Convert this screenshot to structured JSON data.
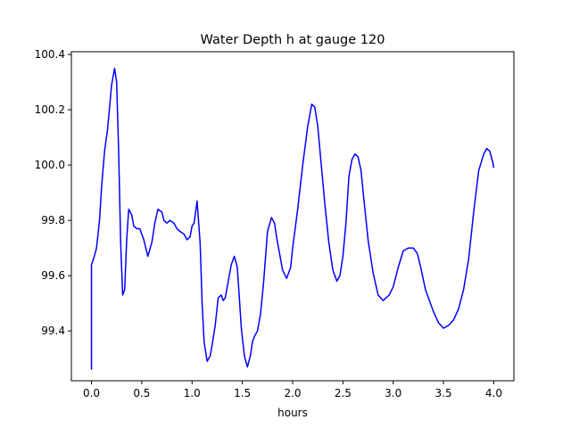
{
  "chart_data": {
    "type": "line",
    "title": "Water Depth h at gauge 120",
    "xlabel": "hours",
    "ylabel": "",
    "xlim": [
      -0.2,
      4.2
    ],
    "ylim": [
      99.22,
      100.41
    ],
    "xticks": [
      0.0,
      0.5,
      1.0,
      1.5,
      2.0,
      2.5,
      3.0,
      3.5,
      4.0
    ],
    "xtick_labels": [
      "0.0",
      "0.5",
      "1.0",
      "1.5",
      "2.0",
      "2.5",
      "3.0",
      "3.5",
      "4.0"
    ],
    "yticks": [
      99.4,
      99.6,
      99.8,
      100.0,
      100.2,
      100.4
    ],
    "ytick_labels": [
      "99.4",
      "99.6",
      "99.8",
      "100.0",
      "100.2",
      "100.4"
    ],
    "grid": false,
    "series": [
      {
        "color": "#0000ff",
        "x": [
          0.0,
          0.0,
          0.02,
          0.05,
          0.08,
          0.1,
          0.13,
          0.16,
          0.2,
          0.23,
          0.25,
          0.27,
          0.29,
          0.31,
          0.33,
          0.35,
          0.37,
          0.4,
          0.42,
          0.45,
          0.48,
          0.52,
          0.56,
          0.6,
          0.63,
          0.66,
          0.7,
          0.72,
          0.75,
          0.78,
          0.82,
          0.85,
          0.88,
          0.92,
          0.95,
          0.98,
          1.0,
          1.02,
          1.05,
          1.08,
          1.1,
          1.12,
          1.15,
          1.18,
          1.2,
          1.23,
          1.26,
          1.29,
          1.31,
          1.33,
          1.36,
          1.39,
          1.42,
          1.45,
          1.47,
          1.49,
          1.52,
          1.55,
          1.58,
          1.6,
          1.62,
          1.65,
          1.68,
          1.71,
          1.75,
          1.79,
          1.82,
          1.84,
          1.86,
          1.9,
          1.94,
          1.98,
          2.0,
          2.05,
          2.1,
          2.15,
          2.19,
          2.22,
          2.25,
          2.28,
          2.32,
          2.36,
          2.4,
          2.44,
          2.47,
          2.5,
          2.53,
          2.56,
          2.59,
          2.62,
          2.65,
          2.68,
          2.71,
          2.75,
          2.8,
          2.85,
          2.9,
          2.93,
          2.96,
          3.0,
          3.05,
          3.1,
          3.15,
          3.2,
          3.24,
          3.28,
          3.32,
          3.36,
          3.4,
          3.45,
          3.5,
          3.55,
          3.6,
          3.65,
          3.7,
          3.75,
          3.8,
          3.85,
          3.9,
          3.93,
          3.96,
          3.99,
          4.0
        ],
        "y": [
          99.26,
          99.64,
          99.66,
          99.7,
          99.8,
          99.92,
          100.05,
          100.13,
          100.29,
          100.35,
          100.3,
          100.05,
          99.72,
          99.53,
          99.55,
          99.73,
          99.84,
          99.82,
          99.78,
          99.77,
          99.77,
          99.73,
          99.67,
          99.72,
          99.79,
          99.84,
          99.83,
          99.8,
          99.79,
          99.8,
          99.79,
          99.77,
          99.76,
          99.75,
          99.73,
          99.74,
          99.78,
          99.79,
          99.87,
          99.72,
          99.5,
          99.36,
          99.29,
          99.31,
          99.35,
          99.42,
          99.52,
          99.53,
          99.51,
          99.52,
          99.58,
          99.64,
          99.67,
          99.63,
          99.52,
          99.41,
          99.31,
          99.27,
          99.31,
          99.36,
          99.38,
          99.4,
          99.46,
          99.57,
          99.76,
          99.81,
          99.79,
          99.74,
          99.7,
          99.62,
          99.59,
          99.63,
          99.7,
          99.84,
          100.0,
          100.14,
          100.22,
          100.21,
          100.14,
          100.02,
          99.86,
          99.72,
          99.62,
          99.58,
          99.6,
          99.67,
          99.79,
          99.96,
          100.02,
          100.04,
          100.03,
          99.98,
          99.87,
          99.73,
          99.61,
          99.53,
          99.51,
          99.52,
          99.53,
          99.56,
          99.63,
          99.69,
          99.7,
          99.7,
          99.68,
          99.62,
          99.55,
          99.51,
          99.47,
          99.43,
          99.41,
          99.42,
          99.44,
          99.48,
          99.55,
          99.66,
          99.83,
          99.98,
          100.04,
          100.06,
          100.05,
          100.01,
          99.99
        ]
      }
    ]
  }
}
